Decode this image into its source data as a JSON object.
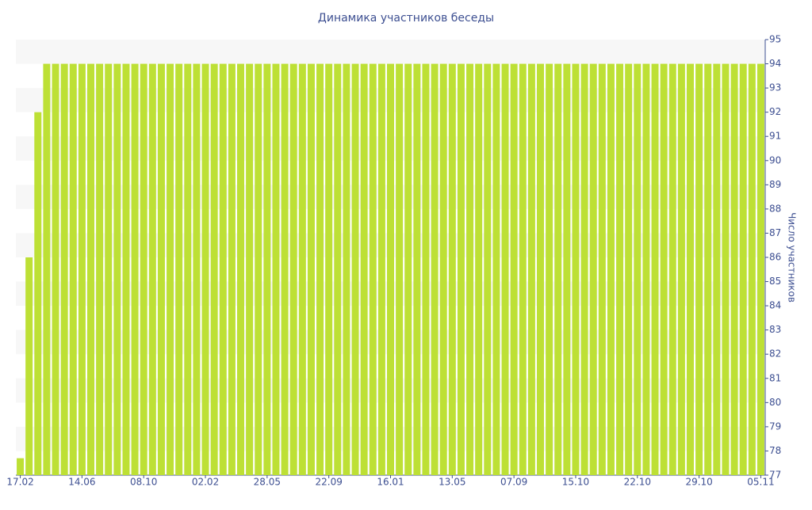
{
  "chart_data": {
    "type": "bar",
    "title": "Динамика участников беседы",
    "y_label": "Число участников",
    "categories": [
      "17.02",
      null,
      null,
      null,
      null,
      null,
      null,
      "14.06",
      null,
      null,
      null,
      null,
      null,
      null,
      "08.10",
      null,
      null,
      null,
      null,
      null,
      null,
      "02.02",
      null,
      null,
      null,
      null,
      null,
      null,
      "28.05",
      null,
      null,
      null,
      null,
      null,
      null,
      "22.09",
      null,
      null,
      null,
      null,
      null,
      null,
      "16.01",
      null,
      null,
      null,
      null,
      null,
      null,
      "13.05",
      null,
      null,
      null,
      null,
      null,
      null,
      "07.09",
      null,
      null,
      null,
      null,
      null,
      null,
      "15.10",
      null,
      null,
      null,
      null,
      null,
      null,
      "22.10",
      null,
      null,
      null,
      null,
      null,
      null,
      "29.10",
      null,
      null,
      null,
      null,
      null,
      null,
      "05.11"
    ],
    "values": [
      77.7,
      86,
      92,
      94,
      94,
      94,
      94,
      94,
      94,
      94,
      94,
      94,
      94,
      94,
      94,
      94,
      94,
      94,
      94,
      94,
      94,
      94,
      94,
      94,
      94,
      94,
      94,
      94,
      94,
      94,
      94,
      94,
      94,
      94,
      94,
      94,
      94,
      94,
      94,
      94,
      94,
      94,
      94,
      94,
      94,
      94,
      94,
      94,
      94,
      94,
      94,
      94,
      94,
      94,
      94,
      94,
      94,
      94,
      94,
      94,
      94,
      94,
      94,
      94,
      94,
      94,
      94,
      94,
      94,
      94,
      94,
      94,
      94,
      94,
      94,
      94,
      94,
      94,
      94,
      94,
      94,
      94,
      94,
      94,
      94
    ],
    "color": "#bde035",
    "ylim": [
      77,
      95
    ],
    "yticks": [
      77,
      78,
      79,
      80,
      81,
      82,
      83,
      84,
      85,
      86,
      87,
      88,
      89,
      90,
      91,
      92,
      93,
      94,
      95
    ],
    "grid": true
  }
}
